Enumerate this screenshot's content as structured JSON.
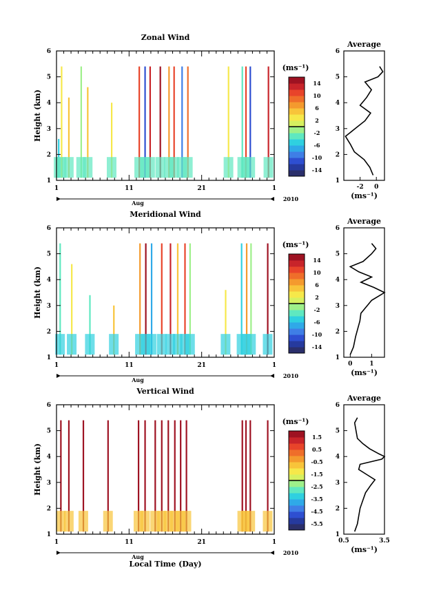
{
  "figure": {
    "xlabel": "Local Time (Day)",
    "month_label": "Aug",
    "year_label": "2010",
    "unit_label": "(ms⁻¹)",
    "y_axis_label": "Height (km)",
    "average_title": "Average"
  },
  "chart_data": [
    {
      "type": "heatmap",
      "title": "Zonal Wind",
      "ylabel": "Height (km)",
      "ylim": [
        1,
        6
      ],
      "yticks": [
        "1",
        "2",
        "3",
        "4",
        "5",
        "6"
      ],
      "xticks": [
        "1",
        "11",
        "21",
        "1"
      ],
      "colorbar_label": "(ms⁻¹)",
      "colorbar_ticks": [
        "14",
        "10",
        "6",
        "2",
        "-2",
        "-6",
        "-10",
        "-14"
      ],
      "colorbar_range": [
        -16,
        16
      ],
      "palette": "rainbow",
      "field": [
        {
          "day": 1.2,
          "y0": 1.1,
          "y1": 2.6,
          "v": -6
        },
        {
          "day": 1.6,
          "y0": 1.1,
          "y1": 5.4,
          "v": 2
        },
        {
          "day": 2.6,
          "y0": 1.1,
          "y1": 4.2,
          "v": 4
        },
        {
          "day": 4.3,
          "y0": 1.1,
          "y1": 5.4,
          "v": -2
        },
        {
          "day": 5.2,
          "y0": 1.1,
          "y1": 4.6,
          "v": 4
        },
        {
          "day": 8.5,
          "y0": 1.1,
          "y1": 4.0,
          "v": 2
        },
        {
          "day": 12.3,
          "y0": 1.1,
          "y1": 5.4,
          "v": 10
        },
        {
          "day": 13.1,
          "y0": 1.1,
          "y1": 5.4,
          "v": -12
        },
        {
          "day": 13.8,
          "y0": 1.1,
          "y1": 5.4,
          "v": 12
        },
        {
          "day": 15.2,
          "y0": 1.1,
          "y1": 5.4,
          "v": 14
        },
        {
          "day": 16.4,
          "y0": 1.1,
          "y1": 5.4,
          "v": 6
        },
        {
          "day": 17.1,
          "y0": 1.1,
          "y1": 5.4,
          "v": 10
        },
        {
          "day": 18.2,
          "y0": 1.1,
          "y1": 5.4,
          "v": -10
        },
        {
          "day": 19.0,
          "y0": 1.1,
          "y1": 5.4,
          "v": 8
        },
        {
          "day": 24.6,
          "y0": 1.1,
          "y1": 5.4,
          "v": 2
        },
        {
          "day": 26.5,
          "y0": 1.1,
          "y1": 5.4,
          "v": -4
        },
        {
          "day": 27.0,
          "y0": 1.1,
          "y1": 5.4,
          "v": 10
        },
        {
          "day": 27.6,
          "y0": 1.1,
          "y1": 5.4,
          "v": -12
        },
        {
          "day": 30.1,
          "y0": 1.1,
          "y1": 5.4,
          "v": 12
        }
      ],
      "average_profile": {
        "xlabel": "(ms⁻¹)",
        "xlim": [
          -4,
          1
        ],
        "xticks": [
          "-2",
          "0"
        ],
        "height": [
          1.2,
          1.5,
          1.8,
          2.1,
          2.4,
          2.7,
          3.0,
          3.3,
          3.6,
          3.9,
          4.2,
          4.5,
          4.8,
          5.0,
          5.2,
          5.4
        ],
        "value": [
          -0.4,
          -0.8,
          -1.5,
          -2.7,
          -3.2,
          -3.8,
          -2.6,
          -1.4,
          -0.7,
          -2.0,
          -1.2,
          -0.6,
          -1.4,
          0.2,
          0.8,
          0.4
        ]
      }
    },
    {
      "type": "heatmap",
      "title": "Meridional Wind",
      "ylabel": "Height (km)",
      "ylim": [
        1,
        6
      ],
      "yticks": [
        "1",
        "2",
        "3",
        "4",
        "5",
        "6"
      ],
      "xticks": [
        "1",
        "11",
        "21",
        "1"
      ],
      "colorbar_label": "(ms⁻¹)",
      "colorbar_ticks": [
        "14",
        "10",
        "6",
        "2",
        "-2",
        "-6",
        "-10",
        "-14"
      ],
      "colorbar_range": [
        -16,
        16
      ],
      "palette": "rainbow",
      "field": [
        {
          "day": 1.4,
          "y0": 1.1,
          "y1": 5.4,
          "v": -4
        },
        {
          "day": 3.0,
          "y0": 1.1,
          "y1": 4.6,
          "v": 2
        },
        {
          "day": 5.5,
          "y0": 1.1,
          "y1": 3.4,
          "v": -4
        },
        {
          "day": 8.8,
          "y0": 1.1,
          "y1": 3.0,
          "v": 4
        },
        {
          "day": 12.4,
          "y0": 1.1,
          "y1": 5.4,
          "v": 6
        },
        {
          "day": 13.2,
          "y0": 1.1,
          "y1": 5.4,
          "v": 14
        },
        {
          "day": 14.0,
          "y0": 1.1,
          "y1": 5.4,
          "v": -8
        },
        {
          "day": 15.4,
          "y0": 1.1,
          "y1": 5.4,
          "v": 10
        },
        {
          "day": 16.6,
          "y0": 1.1,
          "y1": 5.4,
          "v": 12
        },
        {
          "day": 17.6,
          "y0": 1.1,
          "y1": 5.4,
          "v": 4
        },
        {
          "day": 18.6,
          "y0": 1.1,
          "y1": 5.4,
          "v": 10
        },
        {
          "day": 19.3,
          "y0": 1.1,
          "y1": 5.4,
          "v": -2
        },
        {
          "day": 24.2,
          "y0": 1.1,
          "y1": 3.6,
          "v": 2
        },
        {
          "day": 26.4,
          "y0": 1.1,
          "y1": 5.4,
          "v": -6
        },
        {
          "day": 27.1,
          "y0": 1.1,
          "y1": 5.4,
          "v": 6
        },
        {
          "day": 27.7,
          "y0": 1.1,
          "y1": 5.4,
          "v": -2
        },
        {
          "day": 30.0,
          "y0": 1.1,
          "y1": 5.4,
          "v": 14
        }
      ],
      "average_profile": {
        "xlabel": "(ms⁻¹)",
        "xlim": [
          -0.3,
          1.6
        ],
        "xticks": [
          "0",
          "1"
        ],
        "height": [
          1.1,
          1.4,
          1.8,
          2.1,
          2.4,
          2.7,
          3.0,
          3.2,
          3.4,
          3.5,
          3.7,
          3.9,
          4.1,
          4.3,
          4.5,
          4.7,
          5.0,
          5.2,
          5.4
        ],
        "value": [
          0.0,
          0.15,
          0.25,
          0.35,
          0.45,
          0.5,
          0.8,
          1.0,
          1.4,
          1.6,
          1.1,
          0.5,
          1.0,
          0.4,
          0.0,
          0.6,
          1.0,
          1.2,
          1.0
        ]
      }
    },
    {
      "type": "heatmap",
      "title": "Vertical Wind",
      "ylabel": "Height (km)",
      "ylim": [
        1,
        6
      ],
      "yticks": [
        "1",
        "2",
        "3",
        "4",
        "5",
        "6"
      ],
      "xticks": [
        "1",
        "11",
        "21",
        "1"
      ],
      "colorbar_label": "(ms⁻¹)",
      "colorbar_ticks": [
        "1.5",
        "0.5",
        "-0.5",
        "-1.5",
        "-2.5",
        "-3.5",
        "-4.5",
        "-5.5"
      ],
      "colorbar_range": [
        -6,
        2
      ],
      "palette": "rainbow",
      "field": [
        {
          "day": 1.5,
          "y0": 1.1,
          "y1": 5.4,
          "v": 1.5
        },
        {
          "day": 2.6,
          "y0": 1.1,
          "y1": 5.4,
          "v": 1.5
        },
        {
          "day": 4.6,
          "y0": 1.1,
          "y1": 5.4,
          "v": 1.5
        },
        {
          "day": 8.0,
          "y0": 1.1,
          "y1": 5.4,
          "v": 1.5
        },
        {
          "day": 12.2,
          "y0": 1.1,
          "y1": 5.4,
          "v": 1.5
        },
        {
          "day": 13.1,
          "y0": 1.1,
          "y1": 5.4,
          "v": 1.5
        },
        {
          "day": 14.5,
          "y0": 1.1,
          "y1": 5.4,
          "v": 1.5
        },
        {
          "day": 15.4,
          "y0": 1.1,
          "y1": 5.4,
          "v": 1.5
        },
        {
          "day": 16.3,
          "y0": 1.1,
          "y1": 5.4,
          "v": 1.5
        },
        {
          "day": 17.2,
          "y0": 1.1,
          "y1": 5.4,
          "v": 1.5
        },
        {
          "day": 18.0,
          "y0": 1.1,
          "y1": 5.4,
          "v": 1.5
        },
        {
          "day": 18.8,
          "y0": 1.1,
          "y1": 5.4,
          "v": 1.5
        },
        {
          "day": 26.5,
          "y0": 1.1,
          "y1": 5.4,
          "v": 1.5
        },
        {
          "day": 27.0,
          "y0": 1.1,
          "y1": 5.4,
          "v": 1.5
        },
        {
          "day": 27.6,
          "y0": 1.1,
          "y1": 5.4,
          "v": 1.5
        },
        {
          "day": 30.0,
          "y0": 1.1,
          "y1": 5.4,
          "v": 1.5
        }
      ],
      "average_profile": {
        "xlabel": "(ms⁻¹)",
        "xlim": [
          0.5,
          3.5
        ],
        "xticks": [
          "0.5",
          "3.5"
        ],
        "height": [
          1.1,
          1.4,
          1.7,
          2.0,
          2.3,
          2.6,
          2.9,
          3.1,
          3.3,
          3.5,
          3.7,
          3.9,
          4.0,
          4.1,
          4.3,
          4.5,
          4.7,
          5.0,
          5.3,
          5.5
        ],
        "value": [
          1.3,
          1.5,
          1.6,
          1.7,
          1.9,
          2.1,
          2.5,
          2.8,
          2.2,
          1.6,
          1.7,
          3.3,
          3.5,
          3.1,
          2.4,
          1.9,
          1.5,
          1.4,
          1.3,
          1.5
        ]
      }
    }
  ]
}
